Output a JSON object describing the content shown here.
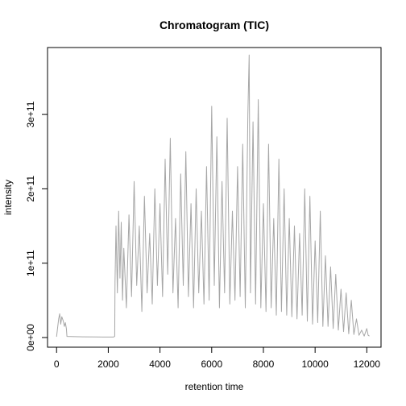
{
  "chart_data": {
    "type": "line",
    "title": "Chromatogram (TIC)",
    "xlabel": "retention time",
    "ylabel": "intensity",
    "xlim": [
      -350,
      12550
    ],
    "ylim": [
      -13000000000.0,
      390000000000.0
    ],
    "x_ticks": [
      0,
      2000,
      4000,
      6000,
      8000,
      10000,
      12000
    ],
    "x_tick_labels": [
      "0",
      "2000",
      "4000",
      "6000",
      "8000",
      "10000",
      "12000"
    ],
    "y_ticks": [
      0,
      100000000000,
      200000000000,
      300000000000
    ],
    "y_tick_labels": [
      "0e+00",
      "1e+11",
      "2e+11",
      "3e+11"
    ],
    "grid": false,
    "legend": "none",
    "series": [
      {
        "color": "#a6a6a6",
        "x": [
          0,
          80,
          120,
          160,
          200,
          260,
          300,
          340,
          380,
          400,
          1000,
          1500,
          2000,
          2200,
          2250,
          2260,
          2300,
          2350,
          2400,
          2450,
          2500,
          2550,
          2600,
          2700,
          2800,
          2900,
          3000,
          3100,
          3200,
          3300,
          3400,
          3500,
          3600,
          3700,
          3800,
          3900,
          4000,
          4100,
          4200,
          4300,
          4400,
          4500,
          4600,
          4700,
          4800,
          4900,
          5000,
          5100,
          5200,
          5300,
          5400,
          5500,
          5600,
          5700,
          5800,
          5900,
          6000,
          6100,
          6200,
          6300,
          6400,
          6500,
          6600,
          6700,
          6800,
          6900,
          7000,
          7100,
          7200,
          7300,
          7400,
          7450,
          7500,
          7600,
          7700,
          7800,
          7900,
          8000,
          8100,
          8200,
          8300,
          8400,
          8500,
          8600,
          8700,
          8800,
          8900,
          9000,
          9100,
          9200,
          9300,
          9400,
          9500,
          9600,
          9700,
          9800,
          9900,
          10000,
          10100,
          10200,
          10300,
          10400,
          10500,
          10600,
          10700,
          10800,
          10900,
          11000,
          11100,
          11200,
          11300,
          11400,
          11500,
          11600,
          11700,
          11800,
          11900,
          12000,
          12050,
          12100
        ],
        "y": [
          1000000000,
          25000000000,
          32000000000,
          18000000000,
          28000000000,
          22000000000,
          15000000000,
          20000000000,
          12000000000,
          1500000000,
          1000000000,
          800000000,
          700000000,
          700000000,
          1500000000,
          75000000000,
          150000000000,
          60000000000,
          170000000000,
          80000000000,
          155000000000,
          50000000000,
          120000000000,
          40000000000,
          165000000000,
          55000000000,
          210000000000,
          70000000000,
          150000000000,
          35000000000,
          190000000000,
          60000000000,
          140000000000,
          45000000000,
          200000000000,
          70000000000,
          180000000000,
          55000000000,
          240000000000,
          85000000000,
          268000000000,
          60000000000,
          160000000000,
          40000000000,
          220000000000,
          70000000000,
          250000000000,
          55000000000,
          180000000000,
          40000000000,
          200000000000,
          60000000000,
          170000000000,
          45000000000,
          230000000000,
          50000000000,
          311000000000,
          70000000000,
          270000000000,
          40000000000,
          210000000000,
          60000000000,
          295000000000,
          45000000000,
          170000000000,
          50000000000,
          230000000000,
          55000000000,
          260000000000,
          40000000000,
          300000000000,
          380000000000,
          60000000000,
          290000000000,
          45000000000,
          320000000000,
          40000000000,
          180000000000,
          35000000000,
          260000000000,
          40000000000,
          160000000000,
          30000000000,
          240000000000,
          35000000000,
          200000000000,
          30000000000,
          160000000000,
          28000000000,
          150000000000,
          25000000000,
          140000000000,
          30000000000,
          200000000000,
          22000000000,
          190000000000,
          18000000000,
          130000000000,
          20000000000,
          170000000000,
          15000000000,
          110000000000,
          15000000000,
          95000000000,
          12000000000,
          85000000000,
          10000000000,
          65000000000,
          8000000000,
          60000000000,
          5000000000,
          50000000000,
          4000000000,
          25000000000,
          3000000000,
          10000000000,
          2000000000,
          12000000000,
          3000000000,
          2000000000
        ]
      }
    ]
  }
}
